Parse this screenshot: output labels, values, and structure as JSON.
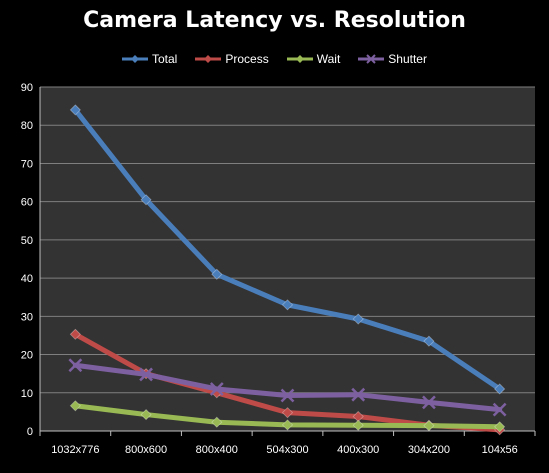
{
  "chart_data": {
    "type": "line",
    "title": "Camera Latency vs. Resolution",
    "xlabel": "",
    "ylabel": "",
    "ylim": [
      0,
      90
    ],
    "yticks": [
      0,
      10,
      20,
      30,
      40,
      50,
      60,
      70,
      80,
      90
    ],
    "grid": true,
    "legend_placement": "top",
    "categories": [
      "1032x776",
      "800x600",
      "800x400",
      "504x300",
      "400x300",
      "304x200",
      "104x56"
    ],
    "series": [
      {
        "name": "Total",
        "color": "#4a7ebb",
        "marker": "diamond",
        "values": [
          84,
          60.5,
          41,
          33,
          29.3,
          23.5,
          11
        ]
      },
      {
        "name": "Process",
        "color": "#be4b48",
        "marker": "diamond",
        "values": [
          25.3,
          15,
          10,
          4.8,
          3.8,
          1.5,
          0.3
        ]
      },
      {
        "name": "Wait",
        "color": "#98b954",
        "marker": "diamond",
        "values": [
          6.6,
          4.3,
          2.3,
          1.6,
          1.5,
          1.4,
          1.1
        ]
      },
      {
        "name": "Shutter",
        "color": "#7d60a0",
        "marker": "x",
        "values": [
          17.2,
          14.8,
          11,
          9.3,
          9.5,
          7.5,
          5.6
        ]
      }
    ]
  }
}
